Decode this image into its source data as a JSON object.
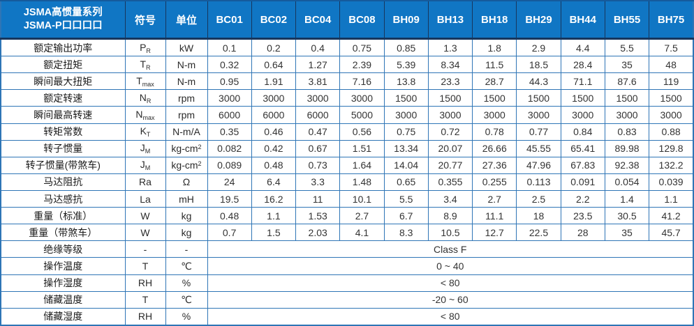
{
  "table": {
    "header": {
      "title_line1": "JSMA高惯量系列",
      "title_line2": "JSMA-P口口口口",
      "symbol_label": "符号",
      "unit_label": "单位",
      "models": [
        "BC01",
        "BC02",
        "BC04",
        "BC08",
        "BH09",
        "BH13",
        "BH18",
        "BH29",
        "BH44",
        "BH55",
        "BH75"
      ]
    },
    "rows": [
      {
        "label": "额定输出功率",
        "symbol": "P",
        "symbol_sub": "R",
        "unit": "kW",
        "values": [
          "0.1",
          "0.2",
          "0.4",
          "0.75",
          "0.85",
          "1.3",
          "1.8",
          "2.9",
          "4.4",
          "5.5",
          "7.5"
        ]
      },
      {
        "label": "额定扭矩",
        "symbol": "T",
        "symbol_sub": "R",
        "unit": "N-m",
        "values": [
          "0.32",
          "0.64",
          "1.27",
          "2.39",
          "5.39",
          "8.34",
          "11.5",
          "18.5",
          "28.4",
          "35",
          "48"
        ]
      },
      {
        "label": "瞬间最大扭矩",
        "symbol": "T",
        "symbol_sub": "max",
        "unit": "N-m",
        "values": [
          "0.95",
          "1.91",
          "3.81",
          "7.16",
          "13.8",
          "23.3",
          "28.7",
          "44.3",
          "71.1",
          "87.6",
          "119"
        ]
      },
      {
        "label": "额定转速",
        "symbol": "N",
        "symbol_sub": "R",
        "unit": "rpm",
        "values": [
          "3000",
          "3000",
          "3000",
          "3000",
          "1500",
          "1500",
          "1500",
          "1500",
          "1500",
          "1500",
          "1500"
        ]
      },
      {
        "label": "瞬间最高转速",
        "symbol": "N",
        "symbol_sub": "max",
        "unit": "rpm",
        "values": [
          "6000",
          "6000",
          "6000",
          "5000",
          "3000",
          "3000",
          "3000",
          "3000",
          "3000",
          "3000",
          "3000"
        ]
      },
      {
        "label": "转矩常数",
        "symbol": "K",
        "symbol_sub": "T",
        "unit": "N-m/A",
        "values": [
          "0.35",
          "0.46",
          "0.47",
          "0.56",
          "0.75",
          "0.72",
          "0.78",
          "0.77",
          "0.84",
          "0.83",
          "0.88"
        ]
      },
      {
        "label": "转子惯量",
        "symbol": "J",
        "symbol_sub": "M",
        "unit": "kg-cm",
        "unit_sup": "2",
        "values": [
          "0.082",
          "0.42",
          "0.67",
          "1.51",
          "13.34",
          "20.07",
          "26.66",
          "45.55",
          "65.41",
          "89.98",
          "129.8"
        ]
      },
      {
        "label": "转子惯量(带煞车)",
        "symbol": "J",
        "symbol_sub": "M",
        "unit": "kg-cm",
        "unit_sup": "2",
        "values": [
          "0.089",
          "0.48",
          "0.73",
          "1.64",
          "14.04",
          "20.77",
          "27.36",
          "47.96",
          "67.83",
          "92.38",
          "132.2"
        ]
      },
      {
        "label": "马达阻抗",
        "symbol": "Ra",
        "unit": "Ω",
        "values": [
          "24",
          "6.4",
          "3.3",
          "1.48",
          "0.65",
          "0.355",
          "0.255",
          "0.113",
          "0.091",
          "0.054",
          "0.039"
        ]
      },
      {
        "label": "马达感抗",
        "symbol": "La",
        "unit": "mH",
        "values": [
          "19.5",
          "16.2",
          "11",
          "10.1",
          "5.5",
          "3.4",
          "2.7",
          "2.5",
          "2.2",
          "1.4",
          "1.1"
        ]
      },
      {
        "label": "重量（标准）",
        "symbol": "W",
        "unit": "kg",
        "values": [
          "0.48",
          "1.1",
          "1.53",
          "2.7",
          "6.7",
          "8.9",
          "11.1",
          "18",
          "23.5",
          "30.5",
          "41.2"
        ]
      },
      {
        "label": "重量（带煞车）",
        "symbol": "W",
        "unit": "kg",
        "values": [
          "0.7",
          "1.5",
          "2.03",
          "4.1",
          "8.3",
          "10.5",
          "12.7",
          "22.5",
          "28",
          "35",
          "45.7"
        ]
      },
      {
        "label": "绝缘等级",
        "symbol": "-",
        "unit": "-",
        "merged": "Class F"
      },
      {
        "label": "操作温度",
        "symbol": "T",
        "unit": "℃",
        "merged": "0 ~ 40"
      },
      {
        "label": "操作湿度",
        "symbol": "RH",
        "unit": "%",
        "merged": "< 80"
      },
      {
        "label": "储藏温度",
        "symbol": "T",
        "unit": "℃",
        "merged": "-20 ~ 60"
      },
      {
        "label": "储藏湿度",
        "symbol": "RH",
        "unit": "%",
        "merged": "< 80"
      }
    ],
    "colors": {
      "header_bg": "#1076c4",
      "header_text": "#ffffff",
      "grid_border": "#2e75b6",
      "header_separator": "#17365d",
      "cell_text": "#333333"
    }
  }
}
